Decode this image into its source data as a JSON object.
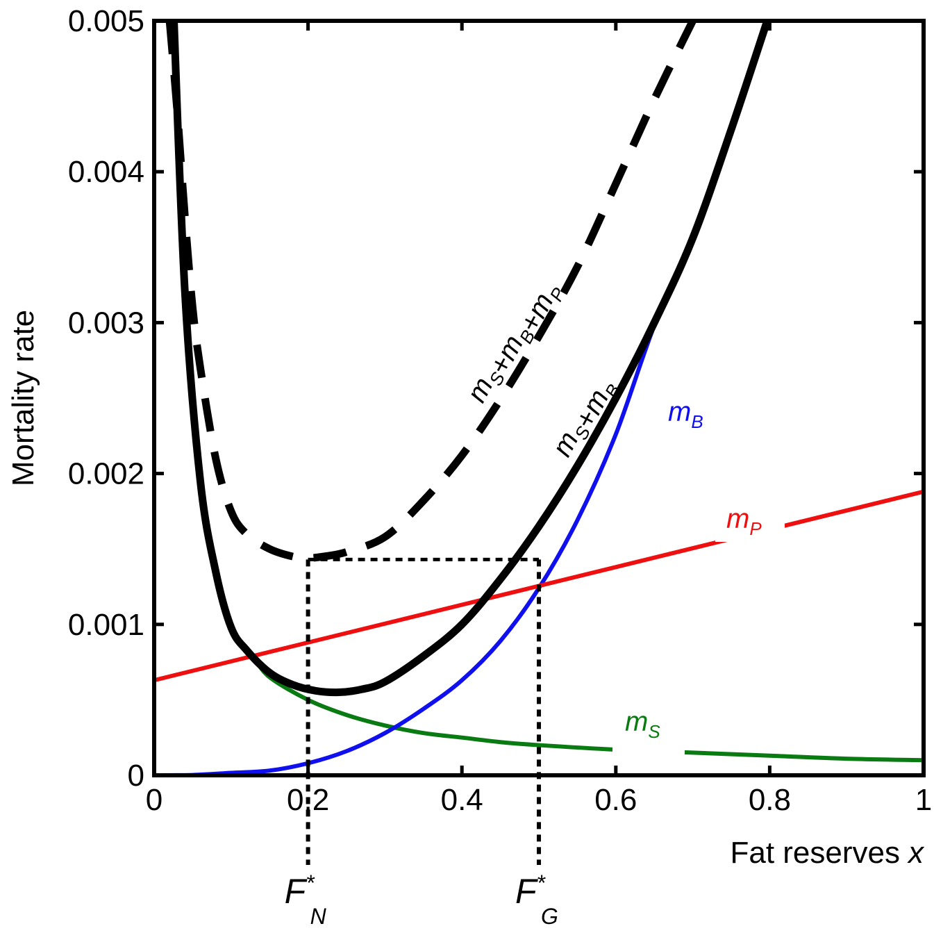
{
  "chart_data": {
    "type": "line",
    "xlabel": "Fat reserves",
    "xlabel_var": "x",
    "ylabel": "Mortality rate",
    "xlim": [
      0,
      1
    ],
    "ylim": [
      0,
      0.005
    ],
    "x_ticks": [
      0,
      0.2,
      0.4,
      0.6,
      0.8,
      1
    ],
    "x_tick_labels": [
      "0",
      "0.2",
      "0.4",
      "0.6",
      "0.8",
      "1"
    ],
    "y_ticks": [
      0,
      0.001,
      0.002,
      0.003,
      0.004,
      0.005
    ],
    "y_tick_labels": [
      "0",
      "0.001",
      "0.002",
      "0.003",
      "0.004",
      "0.005"
    ],
    "grid": false,
    "series": [
      {
        "key": "mS",
        "label": "m",
        "label_sub": "S",
        "label_sup": "",
        "color": "#0a7a12",
        "style": "solid",
        "weight": "thin",
        "x": [
          0.13,
          0.15,
          0.2,
          0.25,
          0.3,
          0.35,
          0.4,
          0.45,
          0.5,
          0.6,
          0.7,
          0.8,
          0.9,
          1.0
        ],
        "y": [
          0.00078,
          0.00065,
          0.0005,
          0.0004,
          0.00033,
          0.00028,
          0.00025,
          0.00022,
          0.0002,
          0.00017,
          0.00015,
          0.00013,
          0.00011,
          0.0001
        ]
      },
      {
        "key": "mB",
        "label": "m",
        "label_sub": "B",
        "label_sup": "",
        "color": "#1010ee",
        "style": "solid",
        "weight": "thin",
        "x": [
          0,
          0.05,
          0.1,
          0.15,
          0.2,
          0.25,
          0.3,
          0.35,
          0.4,
          0.45,
          0.5,
          0.55,
          0.6,
          0.65,
          0.7,
          0.75,
          0.8
        ],
        "y": [
          0,
          2e-06,
          1.6e-05,
          3.1e-05,
          8e-05,
          0.00016,
          0.00028,
          0.00044,
          0.00063,
          0.00089,
          0.00124,
          0.00169,
          0.00226,
          0.00298,
          0.00356,
          0.00425,
          0.00505
        ]
      },
      {
        "key": "mP",
        "label": "m",
        "label_sub": "P",
        "label_sup": "",
        "color": "#ee1010",
        "style": "solid",
        "weight": "thin",
        "x": [
          0,
          1
        ],
        "y": [
          0.00063,
          0.00188
        ]
      },
      {
        "key": "mSB",
        "label": "m",
        "label_sub": "S",
        "label_mid": "+m",
        "label_sub2": "B",
        "color": "#000000",
        "style": "solid",
        "weight": "thick",
        "x": [
          0.025,
          0.04,
          0.06,
          0.08,
          0.1,
          0.12,
          0.15,
          0.18,
          0.21,
          0.24,
          0.27,
          0.3,
          0.35,
          0.4,
          0.45,
          0.5,
          0.55,
          0.6,
          0.65,
          0.7,
          0.75,
          0.8
        ],
        "y": [
          0.0051,
          0.0032,
          0.00195,
          0.00135,
          0.00098,
          0.00083,
          0.00068,
          0.0006,
          0.00056,
          0.00055,
          0.00057,
          0.00062,
          0.00079,
          0.001,
          0.0013,
          0.00165,
          0.00205,
          0.0025,
          0.003,
          0.00356,
          0.00428,
          0.00505
        ]
      },
      {
        "key": "mSBP",
        "label": "m",
        "label_sub": "S",
        "label_mid": "+m",
        "label_sub2": "B",
        "label_mid2": "+m",
        "label_sub3": "P",
        "color": "#000000",
        "style": "dashed",
        "weight": "thick",
        "x": [
          0.02,
          0.03,
          0.04,
          0.05,
          0.06,
          0.08,
          0.1,
          0.12,
          0.15,
          0.18,
          0.2,
          0.22,
          0.25,
          0.3,
          0.35,
          0.4,
          0.45,
          0.5,
          0.55,
          0.6,
          0.65,
          0.7
        ],
        "y": [
          0.005,
          0.0044,
          0.0037,
          0.0031,
          0.0027,
          0.0021,
          0.00175,
          0.0016,
          0.0015,
          0.00145,
          0.00144,
          0.00145,
          0.00148,
          0.00158,
          0.00182,
          0.00212,
          0.00249,
          0.00291,
          0.00337,
          0.00392,
          0.00448,
          0.005
        ]
      }
    ],
    "annotations": {
      "min_level": 0.00143,
      "markers": [
        {
          "x": 0.2,
          "label": "F",
          "sup": "*",
          "sub": "N"
        },
        {
          "x": 0.5,
          "label": "F",
          "sup": "*",
          "sub": "G"
        }
      ]
    }
  }
}
